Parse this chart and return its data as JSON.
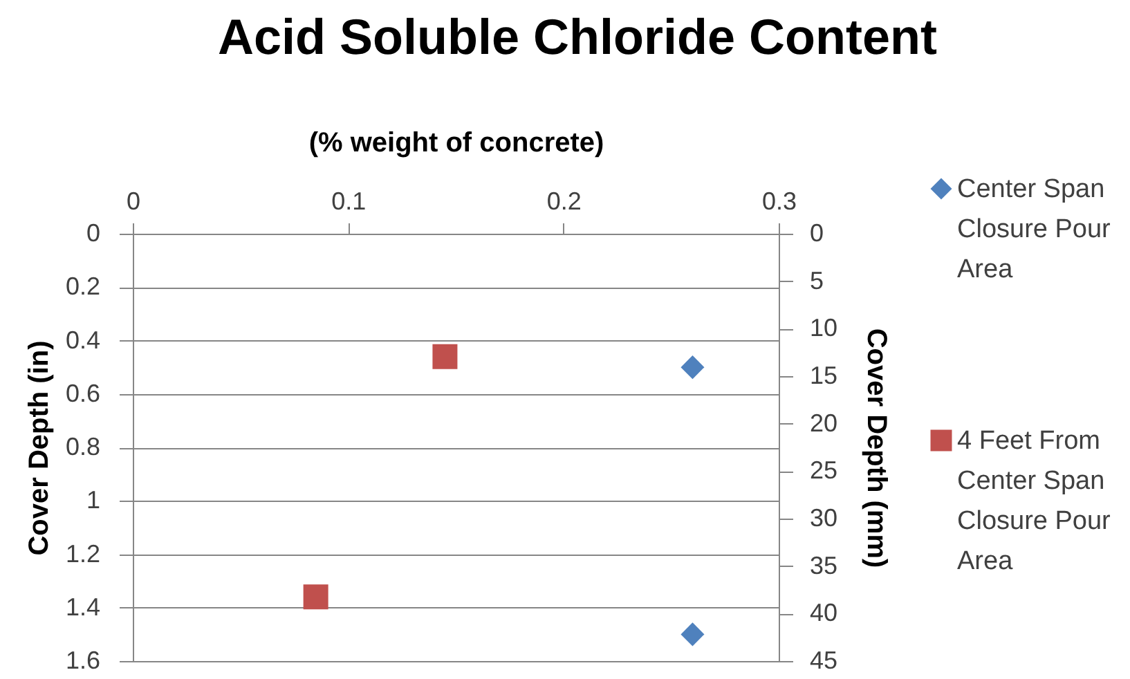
{
  "chart_data": {
    "type": "scatter",
    "title": "Acid Soluble Chloride Content",
    "xlabel": "(% weight of concrete)",
    "ylabel": "Cover Depth (in)",
    "y2label": "Cover Depth (mm)",
    "xlim": [
      0,
      0.3
    ],
    "xticks": [
      0,
      0.1,
      0.2,
      0.3
    ],
    "ylim": [
      1.6,
      0
    ],
    "yticks": [
      0,
      0.2,
      0.4,
      0.6,
      0.8,
      1,
      1.2,
      1.4,
      1.6
    ],
    "y2lim": [
      45,
      0
    ],
    "y2ticks": [
      0,
      5,
      10,
      15,
      20,
      25,
      30,
      35,
      40,
      45
    ],
    "grid": "y",
    "legend": "right",
    "series": [
      {
        "name": "Center Span Closure Pour Area",
        "color": "#4f81bd",
        "marker": "diamond",
        "x": [
          0.26,
          0.26
        ],
        "values": [
          0.5,
          1.5
        ]
      },
      {
        "name": "4 Feet From Center Span Closure Pour Area",
        "color": "#c0504d",
        "marker": "square",
        "x": [
          0.145,
          0.085
        ],
        "values": [
          0.46,
          1.36
        ]
      }
    ]
  }
}
